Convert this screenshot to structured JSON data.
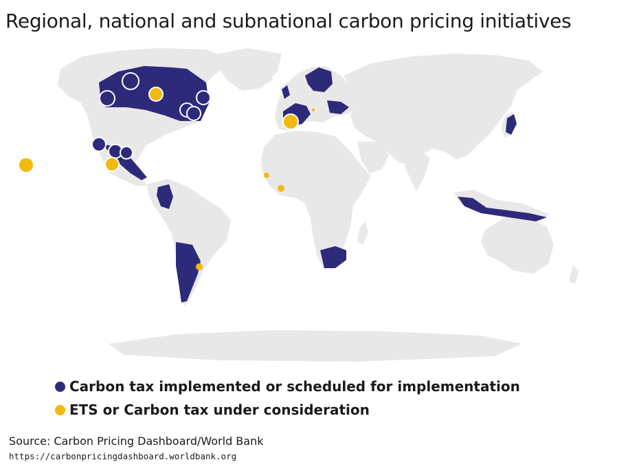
{
  "title": "Regional, national and subnational carbon pricing initiatives",
  "legend": {
    "items": [
      {
        "label": "Carbon tax implemented or scheduled for implementation",
        "color": "#2e2a7a"
      },
      {
        "label": "ETS or Carbon tax under consideration",
        "color": "#f2b90f"
      }
    ]
  },
  "source": {
    "text": "Source: Carbon Pricing Dashboard/World Bank",
    "url": "https://carbonpricingdashboard.worldbank.org"
  },
  "colors": {
    "land": "#e8e8e8",
    "implemented": "#2e2a7a",
    "consideration": "#f2b90f"
  }
}
